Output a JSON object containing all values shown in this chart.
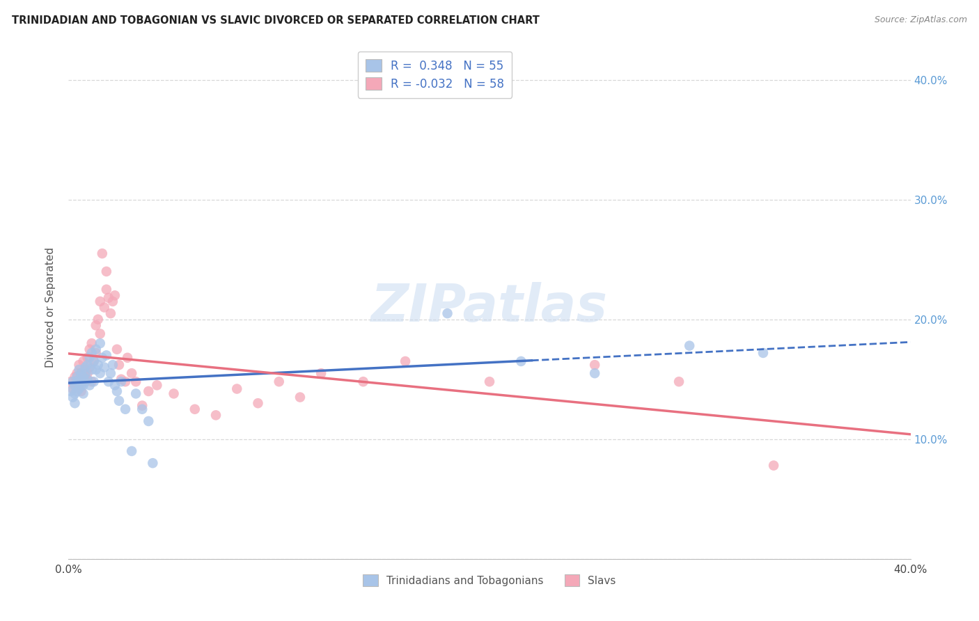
{
  "title": "TRINIDADIAN AND TOBAGONIAN VS SLAVIC DIVORCED OR SEPARATED CORRELATION CHART",
  "source": "Source: ZipAtlas.com",
  "ylabel": "Divorced or Separated",
  "xlim": [
    0.0,
    0.4
  ],
  "ylim": [
    0.0,
    0.42
  ],
  "yticks": [
    0.0,
    0.1,
    0.2,
    0.3,
    0.4
  ],
  "ytick_labels": [
    "",
    "10.0%",
    "20.0%",
    "30.0%",
    "40.0%"
  ],
  "xticks": [
    0.0,
    0.05,
    0.1,
    0.15,
    0.2,
    0.25,
    0.3,
    0.35,
    0.4
  ],
  "R_blue": 0.348,
  "N_blue": 55,
  "R_pink": -0.032,
  "N_pink": 58,
  "legend_label_blue": "Trinidadians and Tobagonians",
  "legend_label_pink": "Slavs",
  "blue_color": "#a8c4e8",
  "pink_color": "#f4a8b8",
  "line_blue": "#4472c4",
  "line_pink": "#e87080",
  "watermark": "ZIPatlas",
  "blue_x": [
    0.001,
    0.002,
    0.002,
    0.003,
    0.003,
    0.003,
    0.004,
    0.004,
    0.004,
    0.005,
    0.005,
    0.005,
    0.006,
    0.006,
    0.006,
    0.007,
    0.007,
    0.007,
    0.008,
    0.008,
    0.008,
    0.009,
    0.009,
    0.01,
    0.01,
    0.011,
    0.011,
    0.012,
    0.012,
    0.013,
    0.013,
    0.014,
    0.015,
    0.015,
    0.016,
    0.017,
    0.018,
    0.019,
    0.02,
    0.021,
    0.022,
    0.023,
    0.024,
    0.025,
    0.027,
    0.03,
    0.032,
    0.035,
    0.038,
    0.04,
    0.18,
    0.215,
    0.25,
    0.295,
    0.33
  ],
  "blue_y": [
    0.14,
    0.135,
    0.148,
    0.13,
    0.138,
    0.145,
    0.14,
    0.148,
    0.152,
    0.142,
    0.15,
    0.158,
    0.145,
    0.148,
    0.155,
    0.138,
    0.145,
    0.152,
    0.148,
    0.155,
    0.16,
    0.15,
    0.162,
    0.145,
    0.168,
    0.158,
    0.172,
    0.165,
    0.148,
    0.158,
    0.175,
    0.162,
    0.155,
    0.18,
    0.168,
    0.16,
    0.17,
    0.148,
    0.155,
    0.162,
    0.145,
    0.14,
    0.132,
    0.148,
    0.125,
    0.09,
    0.138,
    0.125,
    0.115,
    0.08,
    0.205,
    0.165,
    0.155,
    0.178,
    0.172
  ],
  "pink_x": [
    0.001,
    0.002,
    0.003,
    0.003,
    0.004,
    0.004,
    0.005,
    0.005,
    0.006,
    0.006,
    0.007,
    0.007,
    0.008,
    0.008,
    0.009,
    0.009,
    0.01,
    0.01,
    0.011,
    0.011,
    0.012,
    0.013,
    0.013,
    0.014,
    0.015,
    0.015,
    0.016,
    0.017,
    0.018,
    0.018,
    0.019,
    0.02,
    0.021,
    0.022,
    0.023,
    0.024,
    0.025,
    0.027,
    0.028,
    0.03,
    0.032,
    0.035,
    0.038,
    0.042,
    0.05,
    0.06,
    0.07,
    0.08,
    0.09,
    0.1,
    0.11,
    0.12,
    0.14,
    0.16,
    0.2,
    0.25,
    0.29,
    0.335
  ],
  "pink_y": [
    0.148,
    0.142,
    0.152,
    0.145,
    0.155,
    0.148,
    0.162,
    0.145,
    0.155,
    0.14,
    0.148,
    0.165,
    0.158,
    0.152,
    0.168,
    0.155,
    0.175,
    0.16,
    0.18,
    0.148,
    0.165,
    0.195,
    0.172,
    0.2,
    0.215,
    0.188,
    0.255,
    0.21,
    0.225,
    0.24,
    0.218,
    0.205,
    0.215,
    0.22,
    0.175,
    0.162,
    0.15,
    0.148,
    0.168,
    0.155,
    0.148,
    0.128,
    0.14,
    0.145,
    0.138,
    0.125,
    0.12,
    0.142,
    0.13,
    0.148,
    0.135,
    0.155,
    0.148,
    0.165,
    0.148,
    0.162,
    0.148,
    0.078
  ],
  "blue_line_solid_end": 0.22,
  "blue_line_end": 0.4
}
